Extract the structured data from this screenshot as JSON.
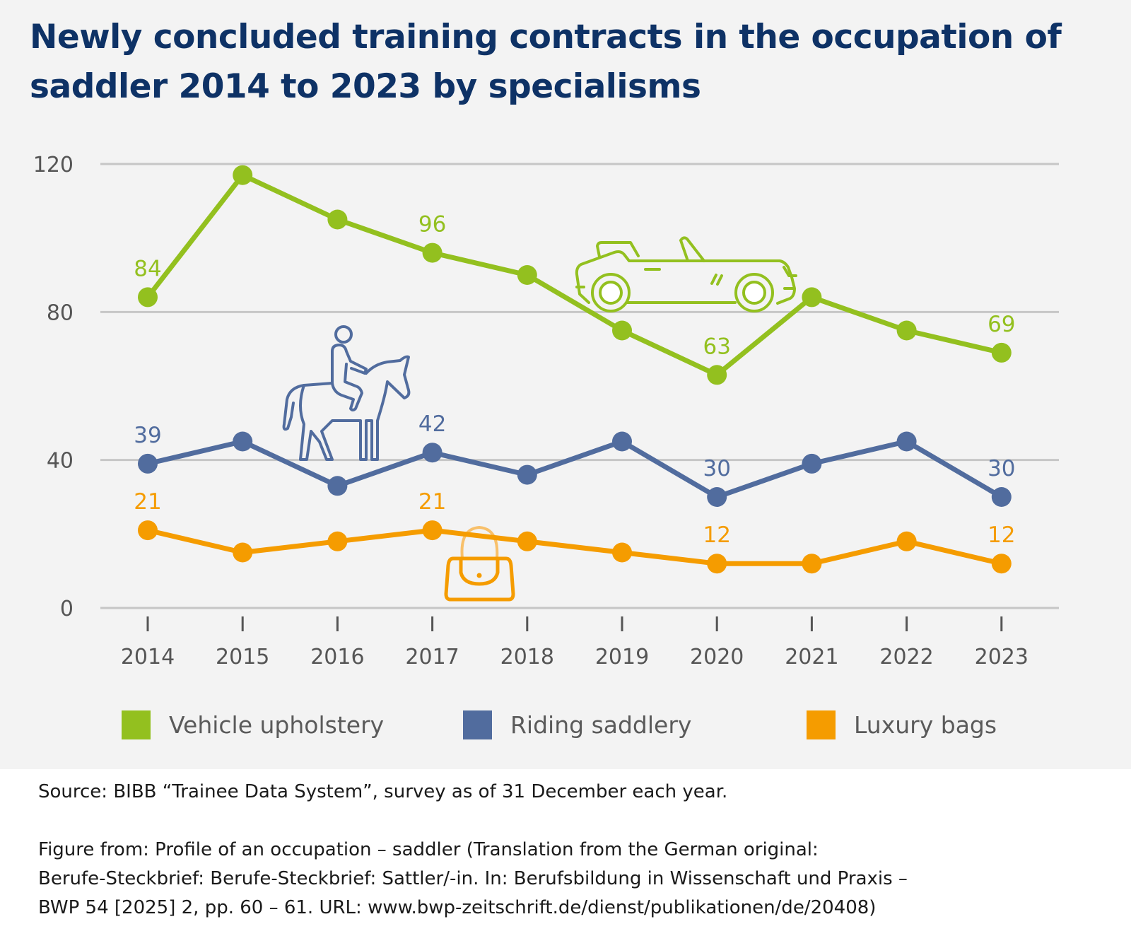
{
  "chart_data": {
    "type": "line",
    "title": "Newly concluded training contracts in the occupation of saddler 2014 to 2023 by specialisms",
    "xlabel": "",
    "ylabel": "",
    "categories": [
      "2014",
      "2015",
      "2016",
      "2017",
      "2018",
      "2019",
      "2020",
      "2021",
      "2022",
      "2023"
    ],
    "ylim": [
      0,
      120
    ],
    "yticks": [
      0,
      40,
      80,
      120
    ],
    "ytick_labels": [
      "0",
      "40",
      "80",
      "120"
    ],
    "grid": true,
    "legend_position": "bottom",
    "series": [
      {
        "name": "Vehicle upholstery",
        "color": "#93c01f",
        "icon": "convertible-car-icon",
        "values": [
          84,
          117,
          105,
          96,
          90,
          75,
          63,
          84,
          75,
          69
        ],
        "labels": {
          "0": "84",
          "3": "96",
          "6": "63",
          "9": "69"
        }
      },
      {
        "name": "Riding saddlery",
        "color": "#516c9e",
        "icon": "horse-rider-icon",
        "values": [
          39,
          45,
          33,
          42,
          36,
          45,
          30,
          39,
          45,
          30
        ],
        "labels": {
          "0": "39",
          "3": "42",
          "6": "30",
          "9": "30"
        }
      },
      {
        "name": "Luxury bags",
        "color": "#f59c00",
        "icon": "handbag-icon",
        "values": [
          21,
          15,
          18,
          21,
          18,
          15,
          12,
          12,
          18,
          12
        ],
        "labels": {
          "0": "21",
          "3": "21",
          "6": "12",
          "9": "12"
        }
      }
    ]
  },
  "header": {
    "title": "Newly concluded training contracts in the occupation of saddler 2014 to 2023 by specialisms"
  },
  "legend": {
    "items": [
      {
        "label": "Vehicle upholstery",
        "color": "#93c01f"
      },
      {
        "label": "Riding saddlery",
        "color": "#516c9e"
      },
      {
        "label": "Luxury bags",
        "color": "#f59c00"
      }
    ]
  },
  "footer": {
    "source": "Source: BIBB “Trainee Data System”, survey as of 31 December each year.",
    "figure_from_lines": [
      "Figure from: Profile of an occupation – saddler (Translation from the German original:",
      "Berufe-Steckbrief: Berufe-Steckbrief: Sattler/-in. In: Berufsbildung in Wissenschaft und Praxis –",
      "BWP 54 [2025] 2, pp. 60 – 61. URL: www.bwp-zeitschrift.de/dienst/publikationen/de/20408)"
    ]
  }
}
